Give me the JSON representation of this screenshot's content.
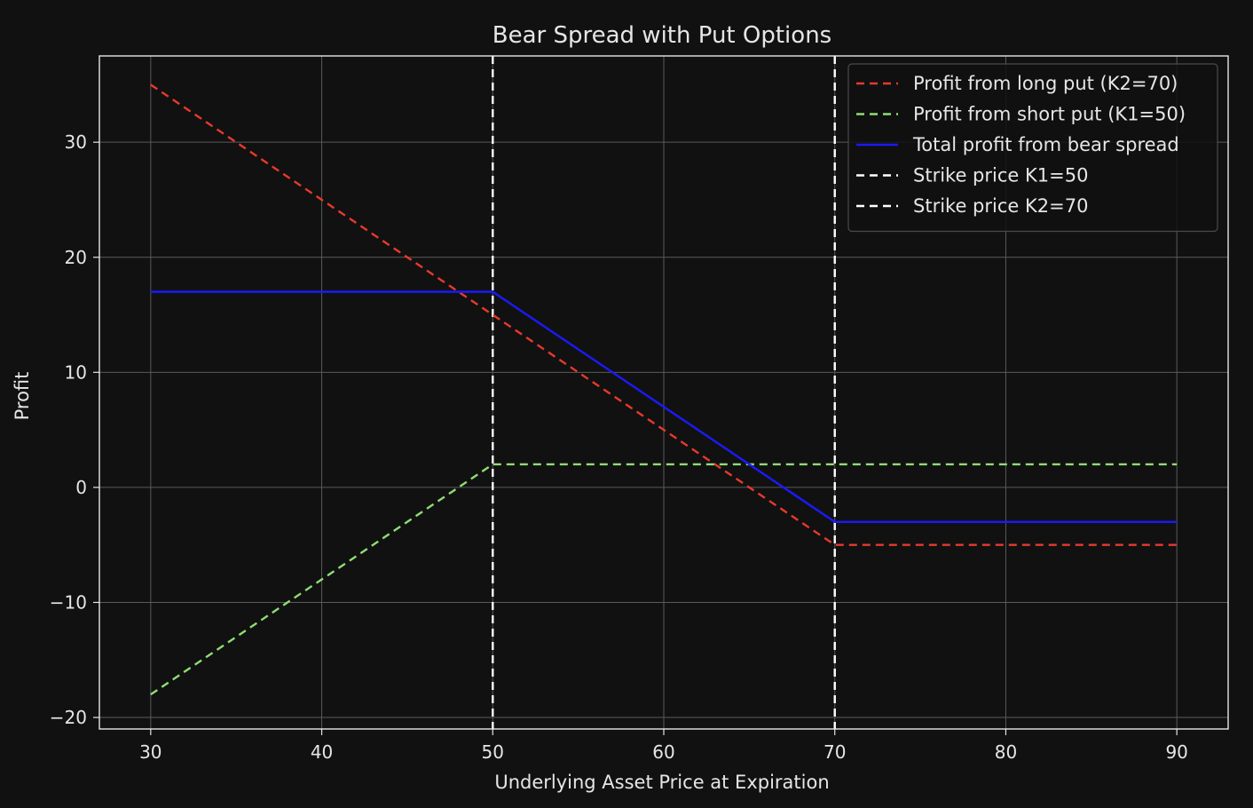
{
  "chart_data": {
    "type": "line",
    "title": "Bear Spread with Put Options",
    "xlabel": "Underlying Asset Price at Expiration",
    "ylabel": "Profit",
    "xlim": [
      27,
      93
    ],
    "ylim": [
      -21,
      37.5
    ],
    "xticks": [
      30,
      40,
      50,
      60,
      70,
      80,
      90
    ],
    "yticks": [
      -20,
      -10,
      0,
      10,
      20,
      30
    ],
    "xtick_labels": [
      "30",
      "40",
      "50",
      "60",
      "70",
      "80",
      "90"
    ],
    "ytick_labels": [
      "−20",
      "−10",
      "0",
      "10",
      "20",
      "30"
    ],
    "grid": true,
    "legend_position": "top-right",
    "series": [
      {
        "name": "Profit from long put (K2=70)",
        "color": "#e8392c",
        "dash": "dashed",
        "x": [
          30,
          70,
          90
        ],
        "y": [
          35,
          -5,
          -5
        ]
      },
      {
        "name": "Profit from short put (K1=50)",
        "color": "#8fdd74",
        "dash": "dashed",
        "x": [
          30,
          50,
          90
        ],
        "y": [
          -18,
          2,
          2
        ]
      },
      {
        "name": "Total profit from bear spread",
        "color": "#1a1aff",
        "dash": "solid",
        "x": [
          30,
          50,
          70,
          90
        ],
        "y": [
          17,
          17,
          -3,
          -3
        ]
      }
    ],
    "vlines": [
      {
        "name": "Strike price K1=50",
        "x": 50,
        "color": "#ffffff",
        "dash": "dashed"
      },
      {
        "name": "Strike price K2=70",
        "x": 70,
        "color": "#ffffff",
        "dash": "dashed"
      }
    ]
  }
}
